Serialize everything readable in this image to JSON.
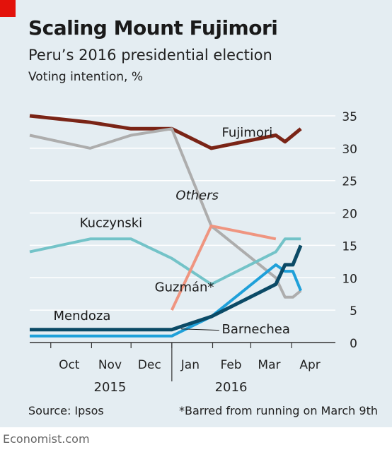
{
  "header": {
    "title": "Scaling Mount Fujimori",
    "subtitle": "Peru’s 2016 presidential election",
    "ylabel": "Voting intention, %"
  },
  "footer": {
    "source": "Source: Ipsos",
    "footnote": "*Barred from running on March 9th",
    "brand": "Economist.com"
  },
  "colors": {
    "panel": "#e4edf2",
    "accent_tag": "#e3120b",
    "grid": "#ffffff",
    "axis": "#333333"
  },
  "chart_data": {
    "type": "line",
    "title": "Scaling Mount Fujimori",
    "subtitle": "Peru’s 2016 presidential election",
    "ylabel": "Voting intention, %",
    "xlabel": "",
    "ylim": [
      0,
      35
    ],
    "xlim": [
      "2015-09-15",
      "2016-04-30"
    ],
    "y_ticks": [
      0,
      5,
      10,
      15,
      20,
      25,
      30,
      35
    ],
    "x_ticks": [
      {
        "label": "Oct",
        "date": "2015-10-15"
      },
      {
        "label": "Nov",
        "date": "2015-11-15"
      },
      {
        "label": "Dec",
        "date": "2015-12-15"
      },
      {
        "label": "Jan",
        "date": "2016-01-15"
      },
      {
        "label": "Feb",
        "date": "2016-02-15"
      },
      {
        "label": "Mar",
        "date": "2016-03-15"
      },
      {
        "label": "Apr",
        "date": "2016-04-15"
      }
    ],
    "x_tick_marks": [
      "2015-10-01",
      "2015-11-01",
      "2015-12-01",
      "2016-01-01",
      "2016-02-01",
      "2016-03-01",
      "2016-04-01"
    ],
    "year_labels": [
      {
        "label": "2015",
        "date": "2015-11-15"
      },
      {
        "label": "2016",
        "date": "2016-02-15"
      }
    ],
    "grid": true,
    "legend": "direct-labels",
    "series": [
      {
        "name": "Fujimori",
        "color": "#7a2416",
        "width": 5,
        "label_position": {
          "date": "2016-02-08",
          "value": 31.8
        },
        "points": [
          {
            "x": "2015-09-15",
            "y": 35
          },
          {
            "x": "2015-10-31",
            "y": 34
          },
          {
            "x": "2015-12-01",
            "y": 33
          },
          {
            "x": "2016-01-01",
            "y": 33
          },
          {
            "x": "2016-01-31",
            "y": 30
          },
          {
            "x": "2016-03-20",
            "y": 32
          },
          {
            "x": "2016-03-27",
            "y": 31
          },
          {
            "x": "2016-04-08",
            "y": 33
          }
        ]
      },
      {
        "name": "Others",
        "color": "#adadad",
        "width": 4,
        "label_position": {
          "date": "2016-01-04",
          "value": 22.1
        },
        "label_italic": true,
        "points": [
          {
            "x": "2015-09-15",
            "y": 32
          },
          {
            "x": "2015-10-31",
            "y": 30
          },
          {
            "x": "2015-12-01",
            "y": 32
          },
          {
            "x": "2016-01-01",
            "y": 33
          },
          {
            "x": "2016-01-31",
            "y": 18
          },
          {
            "x": "2016-03-20",
            "y": 10
          },
          {
            "x": "2016-03-27",
            "y": 7
          },
          {
            "x": "2016-04-02",
            "y": 7
          },
          {
            "x": "2016-04-08",
            "y": 8
          }
        ]
      },
      {
        "name": "Kuczynski",
        "color": "#73c3c8",
        "width": 4,
        "label_position": {
          "date": "2015-10-23",
          "value": 17.8
        },
        "points": [
          {
            "x": "2015-09-15",
            "y": 14
          },
          {
            "x": "2015-10-31",
            "y": 16
          },
          {
            "x": "2015-12-01",
            "y": 16
          },
          {
            "x": "2016-01-01",
            "y": 13
          },
          {
            "x": "2016-01-31",
            "y": 9
          },
          {
            "x": "2016-03-20",
            "y": 14
          },
          {
            "x": "2016-03-27",
            "y": 16
          },
          {
            "x": "2016-04-08",
            "y": 16
          }
        ]
      },
      {
        "name": "Guzmán*",
        "color": "#ef9580",
        "width": 4,
        "label_position": {
          "date": "2015-12-19",
          "value": 7.9
        },
        "points": [
          {
            "x": "2016-01-01",
            "y": 5
          },
          {
            "x": "2016-01-31",
            "y": 18
          },
          {
            "x": "2016-03-20",
            "y": 16
          }
        ]
      },
      {
        "name": "Barnechea",
        "color": "#1fa0d9",
        "width": 4,
        "label_position": {
          "date": "2016-02-08",
          "value": 1.4
        },
        "points": [
          {
            "x": "2015-09-15",
            "y": 1
          },
          {
            "x": "2015-10-31",
            "y": 1
          },
          {
            "x": "2015-12-01",
            "y": 1
          },
          {
            "x": "2016-01-01",
            "y": 1
          },
          {
            "x": "2016-01-31",
            "y": 4
          },
          {
            "x": "2016-03-20",
            "y": 12
          },
          {
            "x": "2016-03-27",
            "y": 11
          },
          {
            "x": "2016-04-02",
            "y": 11
          },
          {
            "x": "2016-04-08",
            "y": 8
          }
        ]
      },
      {
        "name": "Mendoza",
        "color": "#0b4a66",
        "width": 5,
        "label_position": {
          "date": "2015-10-03",
          "value": 3.5
        },
        "points": [
          {
            "x": "2015-09-15",
            "y": 2
          },
          {
            "x": "2015-10-31",
            "y": 2
          },
          {
            "x": "2015-12-01",
            "y": 2
          },
          {
            "x": "2016-01-01",
            "y": 2
          },
          {
            "x": "2016-01-31",
            "y": 4
          },
          {
            "x": "2016-03-20",
            "y": 9
          },
          {
            "x": "2016-03-27",
            "y": 12
          },
          {
            "x": "2016-04-02",
            "y": 12
          },
          {
            "x": "2016-04-08",
            "y": 15
          }
        ]
      }
    ]
  }
}
